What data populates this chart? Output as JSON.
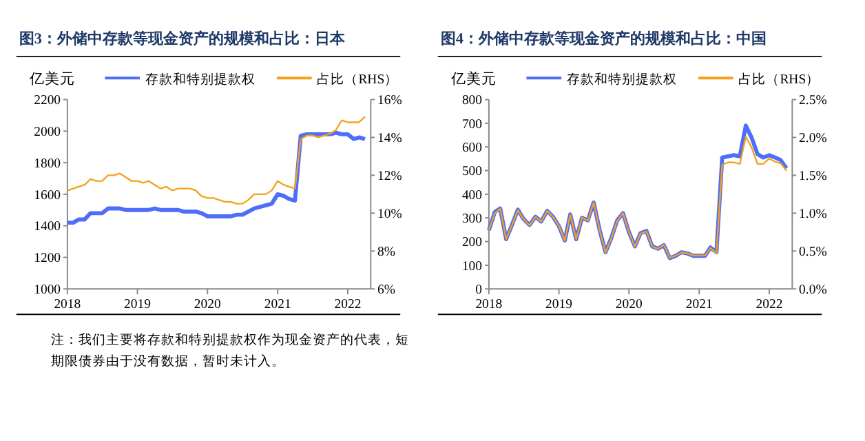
{
  "chart_data": [
    {
      "type": "line",
      "title": "图3：外储中存款等现金资产的规模和占比：日本",
      "ylabel": "亿美元",
      "legend": "top",
      "x": [
        "2018-01",
        "2018-02",
        "2018-03",
        "2018-04",
        "2018-05",
        "2018-06",
        "2018-07",
        "2018-08",
        "2018-09",
        "2018-10",
        "2018-11",
        "2018-12",
        "2019-01",
        "2019-02",
        "2019-03",
        "2019-04",
        "2019-05",
        "2019-06",
        "2019-07",
        "2019-08",
        "2019-09",
        "2019-10",
        "2019-11",
        "2019-12",
        "2020-01",
        "2020-02",
        "2020-03",
        "2020-04",
        "2020-05",
        "2020-06",
        "2020-07",
        "2020-08",
        "2020-09",
        "2020-10",
        "2020-11",
        "2020-12",
        "2021-01",
        "2021-02",
        "2021-03",
        "2021-04",
        "2021-05",
        "2021-06",
        "2021-07",
        "2021-08",
        "2021-09",
        "2021-10",
        "2021-11",
        "2021-12",
        "2022-01",
        "2022-02",
        "2022-03",
        "2022-04"
      ],
      "xlim": [
        "2018-01",
        "2022-05"
      ],
      "xticks": [
        "2018",
        "2019",
        "2020",
        "2021",
        "2022"
      ],
      "ylim": [
        1000,
        2200
      ],
      "yticks": [
        1000,
        1200,
        1400,
        1600,
        1800,
        2000,
        2200
      ],
      "y2lim": [
        6,
        16
      ],
      "y2ticks": [
        {
          "value": 6,
          "label": "6%"
        },
        {
          "value": 8,
          "label": "8%"
        },
        {
          "value": 10,
          "label": "10%"
        },
        {
          "value": 12,
          "label": "12%"
        },
        {
          "value": 14,
          "label": "14%"
        },
        {
          "value": 16,
          "label": "16%"
        }
      ],
      "series": [
        {
          "name": "存款和特别提款权",
          "color": "#4f6ef7",
          "values": [
            1420,
            1420,
            1440,
            1440,
            1480,
            1480,
            1480,
            1510,
            1510,
            1510,
            1500,
            1500,
            1500,
            1500,
            1500,
            1510,
            1500,
            1500,
            1500,
            1500,
            1490,
            1490,
            1490,
            1480,
            1460,
            1460,
            1460,
            1460,
            1460,
            1470,
            1470,
            1490,
            1510,
            1520,
            1530,
            1540,
            1600,
            1590,
            1570,
            1560,
            1970,
            1980,
            1980,
            1980,
            1980,
            1980,
            1990,
            1980,
            1980,
            1950,
            1960,
            1950
          ]
        },
        {
          "name": "占比（RHS）",
          "color": "#f5a21b",
          "axis": "y2",
          "values": [
            11.2,
            11.3,
            11.4,
            11.5,
            11.8,
            11.7,
            11.7,
            12.0,
            12.0,
            12.1,
            11.9,
            11.7,
            11.7,
            11.6,
            11.7,
            11.5,
            11.3,
            11.4,
            11.2,
            11.3,
            11.3,
            11.3,
            11.2,
            10.9,
            10.8,
            10.8,
            10.7,
            10.6,
            10.6,
            10.5,
            10.5,
            10.7,
            11.0,
            11.0,
            11.0,
            11.2,
            11.7,
            11.5,
            11.4,
            11.3,
            13.9,
            14.1,
            14.1,
            14.0,
            14.1,
            14.2,
            14.4,
            14.9,
            14.8,
            14.8,
            14.8,
            15.1
          ]
        }
      ],
      "annotations": [
        "注：我们主要将存款和特别提款权作为现金资产的代表，短期限债券由于没有数据，暂时未计入。"
      ]
    },
    {
      "type": "line",
      "title": "图4：外储中存款等现金资产的规模和占比：中国",
      "ylabel": "亿美元",
      "legend": "top",
      "x": [
        "2018-01",
        "2018-02",
        "2018-03",
        "2018-04",
        "2018-05",
        "2018-06",
        "2018-07",
        "2018-08",
        "2018-09",
        "2018-10",
        "2018-11",
        "2018-12",
        "2019-01",
        "2019-02",
        "2019-03",
        "2019-04",
        "2019-05",
        "2019-06",
        "2019-07",
        "2019-08",
        "2019-09",
        "2019-10",
        "2019-11",
        "2019-12",
        "2020-01",
        "2020-02",
        "2020-03",
        "2020-04",
        "2020-05",
        "2020-06",
        "2020-07",
        "2020-08",
        "2020-09",
        "2020-10",
        "2020-11",
        "2020-12",
        "2021-01",
        "2021-02",
        "2021-03",
        "2021-04",
        "2021-05",
        "2021-06",
        "2021-07",
        "2021-08",
        "2021-09",
        "2021-10",
        "2021-11",
        "2021-12",
        "2022-01",
        "2022-02",
        "2022-03",
        "2022-04"
      ],
      "xlim": [
        "2018-01",
        "2022-05"
      ],
      "xticks": [
        "2018",
        "2019",
        "2020",
        "2021",
        "2022"
      ],
      "ylim": [
        0,
        800
      ],
      "yticks": [
        0,
        100,
        200,
        300,
        400,
        500,
        600,
        700,
        800
      ],
      "y2lim": [
        0,
        2.5
      ],
      "y2ticks": [
        {
          "value": 0,
          "label": "0.0%"
        },
        {
          "value": 0.5,
          "label": "0.5%"
        },
        {
          "value": 1,
          "label": "1.0%"
        },
        {
          "value": 1.5,
          "label": "1.5%"
        },
        {
          "value": 2,
          "label": "2.0%"
        },
        {
          "value": 2.5,
          "label": "2.5%"
        }
      ],
      "series": [
        {
          "name": "存款和特别提款权",
          "color": "#4f6ef7",
          "values": [
            248,
            325,
            340,
            210,
            270,
            335,
            295,
            270,
            305,
            285,
            330,
            305,
            265,
            205,
            315,
            210,
            300,
            290,
            365,
            250,
            155,
            215,
            290,
            320,
            240,
            180,
            235,
            245,
            180,
            170,
            185,
            130,
            140,
            155,
            150,
            140,
            140,
            140,
            175,
            155,
            555,
            560,
            565,
            560,
            690,
            640,
            570,
            555,
            565,
            555,
            545,
            510
          ]
        },
        {
          "name": "占比（RHS）",
          "color": "#f5a21b",
          "axis": "y2",
          "values": [
            0.78,
            1.0,
            1.06,
            0.66,
            0.84,
            1.04,
            0.92,
            0.84,
            0.95,
            0.89,
            1.03,
            0.95,
            0.83,
            0.64,
            0.98,
            0.66,
            0.94,
            0.9,
            1.14,
            0.78,
            0.48,
            0.67,
            0.9,
            1.0,
            0.75,
            0.56,
            0.73,
            0.76,
            0.56,
            0.53,
            0.58,
            0.41,
            0.44,
            0.48,
            0.47,
            0.44,
            0.44,
            0.44,
            0.54,
            0.47,
            1.64,
            1.67,
            1.67,
            1.65,
            2.01,
            1.87,
            1.65,
            1.65,
            1.72,
            1.68,
            1.66,
            1.56
          ]
        }
      ]
    }
  ]
}
